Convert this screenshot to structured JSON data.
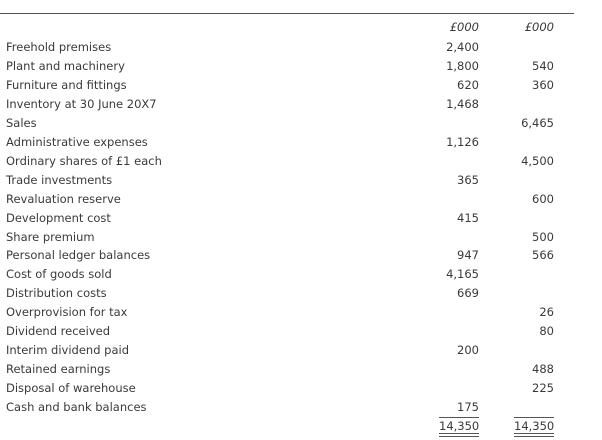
{
  "headers": [
    "£000",
    "£000"
  ],
  "rows": [
    {
      "label": "Freehold premises",
      "debit": "2,400",
      "credit": ""
    },
    {
      "label": "Plant and machinery",
      "debit": "1,800",
      "credit": "540"
    },
    {
      "label": "Furniture and fittings",
      "debit": "620",
      "credit": "360"
    },
    {
      "label": "Inventory at 30 June 20X7",
      "debit": "1,468",
      "credit": ""
    },
    {
      "label": "Sales",
      "debit": "",
      "credit": "6,465"
    },
    {
      "label": "Administrative expenses",
      "debit": "1,126",
      "credit": ""
    },
    {
      "label": "Ordinary shares of £1 each",
      "debit": "",
      "credit": "4,500"
    },
    {
      "label": "Trade investments",
      "debit": "365",
      "credit": ""
    },
    {
      "label": "Revaluation reserve",
      "debit": "",
      "credit": "600"
    },
    {
      "label": "Development cost",
      "debit": "415",
      "credit": ""
    },
    {
      "label": "Share premium",
      "debit": "",
      "credit": "500"
    },
    {
      "label": "Personal ledger balances",
      "debit": "947",
      "credit": "566"
    },
    {
      "label": "Cost of goods sold",
      "debit": "4,165",
      "credit": ""
    },
    {
      "label": "Distribution costs",
      "debit": "669",
      "credit": ""
    },
    {
      "label": "Overprovision for tax",
      "debit": "",
      "credit": "26"
    },
    {
      "label": "Dividend received",
      "debit": "",
      "credit": "80"
    },
    {
      "label": "Interim dividend paid",
      "debit": "200",
      "credit": ""
    },
    {
      "label": "Retained earnings",
      "debit": "",
      "credit": "488"
    },
    {
      "label": "Disposal of warehouse",
      "debit": "",
      "credit": "225"
    },
    {
      "label": "Cash and bank balances",
      "debit": "175",
      "credit": ""
    }
  ],
  "totals": {
    "debit": "14,350",
    "credit": "14,350"
  }
}
